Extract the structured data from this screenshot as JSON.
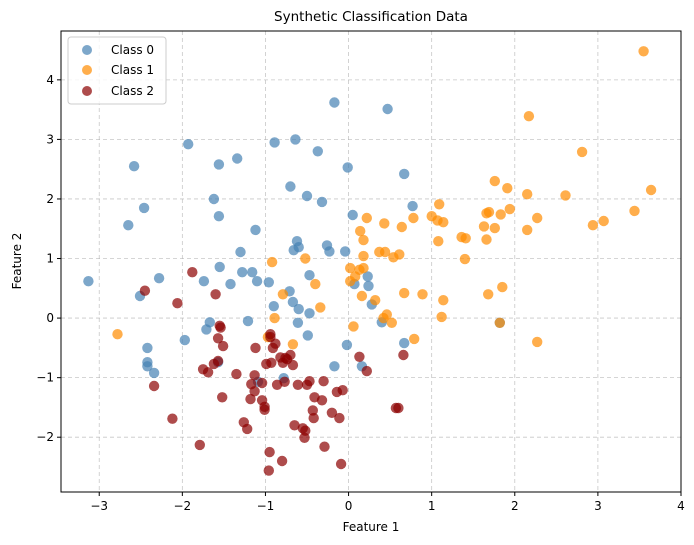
{
  "chart_data": {
    "type": "scatter",
    "title": "Synthetic  Classification Data",
    "xlabel": "Feature 1",
    "ylabel": "Feature 2",
    "xlim": [
      -3.46,
      4.0
    ],
    "ylim": [
      -2.92,
      4.82
    ],
    "xticks": [
      -3,
      -2,
      -1,
      0,
      1,
      2,
      3,
      4
    ],
    "yticks": [
      -2,
      -1,
      0,
      1,
      2,
      3,
      4
    ],
    "xtick_labels": [
      "−3",
      "−2",
      "−1",
      "0",
      "1",
      "2",
      "3",
      "4"
    ],
    "ytick_labels": [
      "−2",
      "−1",
      "0",
      "1",
      "2",
      "3",
      "4"
    ],
    "grid": true,
    "legend_position": "top-left",
    "series": [
      {
        "name": "Class 0",
        "color": "#4682B4",
        "points": [
          [
            -2.58,
            2.55
          ],
          [
            -1.93,
            2.92
          ],
          [
            -1.56,
            2.58
          ],
          [
            -1.34,
            2.68
          ],
          [
            -1.62,
            2.0
          ],
          [
            -1.56,
            1.71
          ],
          [
            -2.46,
            1.85
          ],
          [
            -2.65,
            1.56
          ],
          [
            -1.12,
            1.48
          ],
          [
            -1.3,
            1.11
          ],
          [
            -3.13,
            0.62
          ],
          [
            -2.28,
            0.67
          ],
          [
            -1.55,
            0.86
          ],
          [
            -1.28,
            0.77
          ],
          [
            -1.16,
            0.77
          ],
          [
            -1.74,
            0.62
          ],
          [
            -1.42,
            0.57
          ],
          [
            -1.1,
            0.62
          ],
          [
            -2.51,
            0.37
          ],
          [
            -0.96,
            0.6
          ],
          [
            -0.17,
            3.62
          ],
          [
            0.47,
            3.51
          ],
          [
            -0.89,
            2.95
          ],
          [
            -0.64,
            3.0
          ],
          [
            -0.37,
            2.8
          ],
          [
            -0.01,
            2.53
          ],
          [
            0.67,
            2.42
          ],
          [
            -0.7,
            2.21
          ],
          [
            -0.5,
            2.05
          ],
          [
            -0.32,
            1.95
          ],
          [
            0.77,
            1.88
          ],
          [
            0.05,
            1.73
          ],
          [
            -0.62,
            1.29
          ],
          [
            -0.66,
            1.14
          ],
          [
            -0.6,
            1.19
          ],
          [
            -0.26,
            1.22
          ],
          [
            -0.23,
            1.12
          ],
          [
            -0.04,
            1.12
          ],
          [
            -0.47,
            0.72
          ],
          [
            -0.71,
            0.45
          ],
          [
            -0.67,
            0.27
          ],
          [
            -0.6,
            0.15
          ],
          [
            -0.9,
            0.2
          ],
          [
            -0.47,
            0.08
          ],
          [
            -1.21,
            -0.05
          ],
          [
            -0.61,
            -0.08
          ],
          [
            -0.49,
            -0.29
          ],
          [
            0.23,
            0.7
          ],
          [
            0.07,
            0.57
          ],
          [
            0.24,
            0.54
          ],
          [
            0.28,
            0.23
          ],
          [
            0.4,
            -0.07
          ],
          [
            -0.02,
            -0.45
          ],
          [
            0.67,
            -0.42
          ],
          [
            -0.17,
            -0.81
          ],
          [
            0.16,
            -0.81
          ],
          [
            -2.42,
            -0.5
          ],
          [
            -2.42,
            -0.74
          ],
          [
            -2.42,
            -0.81
          ],
          [
            -2.34,
            -0.92
          ],
          [
            -1.97,
            -0.37
          ],
          [
            -1.67,
            -0.07
          ],
          [
            -1.71,
            -0.19
          ],
          [
            -1.09,
            -1.07
          ],
          [
            -0.78,
            -1.01
          ],
          [
            -1.57,
            -0.74
          ],
          [
            1.82,
            -0.08
          ]
        ]
      },
      {
        "name": "Class 1",
        "color": "#FF8C00",
        "points": [
          [
            3.55,
            4.48
          ],
          [
            2.17,
            3.39
          ],
          [
            2.81,
            2.79
          ],
          [
            1.76,
            2.3
          ],
          [
            1.91,
            2.18
          ],
          [
            2.15,
            2.08
          ],
          [
            2.61,
            2.06
          ],
          [
            3.64,
            2.15
          ],
          [
            1.09,
            1.91
          ],
          [
            1.0,
            1.71
          ],
          [
            1.07,
            1.64
          ],
          [
            1.14,
            1.61
          ],
          [
            1.66,
            1.76
          ],
          [
            1.69,
            1.78
          ],
          [
            1.83,
            1.74
          ],
          [
            1.94,
            1.83
          ],
          [
            2.27,
            1.68
          ],
          [
            1.63,
            1.54
          ],
          [
            1.76,
            1.51
          ],
          [
            2.15,
            1.48
          ],
          [
            2.94,
            1.56
          ],
          [
            3.07,
            1.63
          ],
          [
            3.44,
            1.8
          ],
          [
            1.36,
            1.36
          ],
          [
            1.41,
            1.34
          ],
          [
            1.08,
            1.29
          ],
          [
            1.66,
            1.32
          ],
          [
            1.4,
            0.99
          ],
          [
            0.22,
            1.68
          ],
          [
            0.43,
            1.59
          ],
          [
            0.64,
            1.53
          ],
          [
            0.78,
            1.68
          ],
          [
            0.14,
            1.46
          ],
          [
            0.18,
            1.31
          ],
          [
            0.18,
            1.04
          ],
          [
            0.37,
            1.11
          ],
          [
            0.44,
            1.11
          ],
          [
            0.54,
            1.02
          ],
          [
            0.61,
            1.07
          ],
          [
            -0.52,
            1.0
          ],
          [
            -0.92,
            0.94
          ],
          [
            -0.4,
            0.57
          ],
          [
            -0.79,
            0.4
          ],
          [
            -0.34,
            0.18
          ],
          [
            -0.89,
            0.0
          ],
          [
            -0.97,
            -0.32
          ],
          [
            -0.67,
            -0.44
          ],
          [
            0.18,
            0.84
          ],
          [
            0.02,
            0.84
          ],
          [
            0.13,
            0.81
          ],
          [
            0.08,
            0.7
          ],
          [
            0.02,
            0.62
          ],
          [
            0.16,
            0.37
          ],
          [
            0.32,
            0.3
          ],
          [
            0.67,
            0.42
          ],
          [
            0.89,
            0.4
          ],
          [
            1.14,
            0.3
          ],
          [
            1.12,
            0.02
          ],
          [
            0.46,
            0.06
          ],
          [
            0.42,
            0.0
          ],
          [
            0.52,
            -0.08
          ],
          [
            0.06,
            -0.14
          ],
          [
            0.79,
            -0.35
          ],
          [
            1.68,
            0.4
          ],
          [
            1.85,
            0.52
          ],
          [
            1.82,
            -0.08
          ],
          [
            2.27,
            -0.4
          ],
          [
            -2.78,
            -0.27
          ]
        ]
      },
      {
        "name": "Class 2",
        "color": "#8B0000",
        "points": [
          [
            -1.88,
            0.77
          ],
          [
            -2.45,
            0.46
          ],
          [
            -1.6,
            0.4
          ],
          [
            -2.06,
            0.25
          ],
          [
            -2.34,
            -1.14
          ],
          [
            -2.12,
            -1.69
          ],
          [
            -1.55,
            -0.13
          ],
          [
            -1.54,
            -0.16
          ],
          [
            -1.57,
            -0.34
          ],
          [
            -1.51,
            -0.47
          ],
          [
            -1.75,
            -0.86
          ],
          [
            -1.69,
            -0.91
          ],
          [
            -1.62,
            -0.77
          ],
          [
            -1.57,
            -0.72
          ],
          [
            -1.35,
            -0.94
          ],
          [
            -1.52,
            -1.33
          ],
          [
            -1.12,
            -0.5
          ],
          [
            -1.26,
            -1.75
          ],
          [
            -1.22,
            -1.86
          ],
          [
            -1.17,
            -1.11
          ],
          [
            -1.13,
            -0.96
          ],
          [
            -1.04,
            -1.09
          ],
          [
            -1.04,
            -1.38
          ],
          [
            -1.01,
            -1.49
          ],
          [
            -1.01,
            -1.54
          ],
          [
            -0.94,
            -0.27
          ],
          [
            -0.94,
            -0.32
          ],
          [
            -0.88,
            -0.43
          ],
          [
            -0.91,
            -0.5
          ],
          [
            -0.82,
            -0.66
          ],
          [
            -0.7,
            -0.62
          ],
          [
            -0.76,
            -0.67
          ],
          [
            -0.79,
            -0.75
          ],
          [
            -0.99,
            -0.77
          ],
          [
            -0.93,
            -0.75
          ],
          [
            -0.67,
            -0.79
          ],
          [
            0.13,
            -0.65
          ],
          [
            0.22,
            -0.89
          ],
          [
            0.66,
            -0.62
          ],
          [
            -0.86,
            -1.12
          ],
          [
            -0.77,
            -1.07
          ],
          [
            -0.61,
            -1.12
          ],
          [
            -0.5,
            -1.12
          ],
          [
            -0.47,
            -1.06
          ],
          [
            -0.3,
            -1.06
          ],
          [
            -0.14,
            -1.24
          ],
          [
            -0.07,
            -1.21
          ],
          [
            -1.13,
            -1.23
          ],
          [
            -1.18,
            -1.36
          ],
          [
            -0.41,
            -1.33
          ],
          [
            -0.32,
            -1.38
          ],
          [
            -0.43,
            -1.55
          ],
          [
            -0.42,
            -1.68
          ],
          [
            -0.2,
            -1.59
          ],
          [
            -0.11,
            -1.68
          ],
          [
            -0.65,
            -1.8
          ],
          [
            -0.55,
            -1.85
          ],
          [
            -0.52,
            -1.89
          ],
          [
            -0.53,
            -2.01
          ],
          [
            -0.29,
            -2.16
          ],
          [
            -0.95,
            -2.25
          ],
          [
            -0.8,
            -2.4
          ],
          [
            -0.09,
            -2.45
          ],
          [
            -0.96,
            -2.56
          ],
          [
            0.57,
            -1.51
          ],
          [
            0.6,
            -1.51
          ],
          [
            -1.79,
            -2.13
          ],
          [
            -0.74,
            -0.69
          ]
        ]
      }
    ]
  }
}
